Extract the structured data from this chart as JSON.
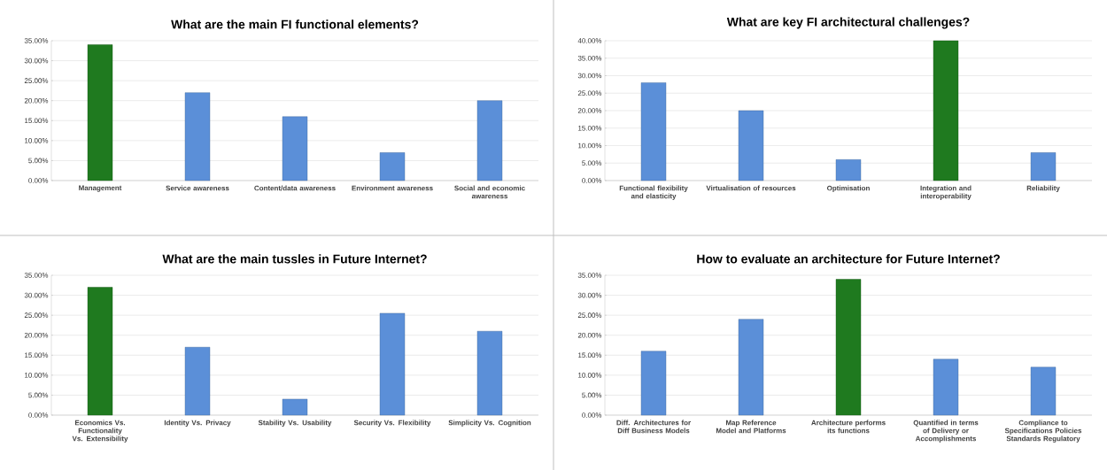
{
  "chart_data": [
    {
      "type": "bar",
      "title": "What are the main FI functional elements?",
      "categories": [
        "Management",
        "Service awareness",
        "Content/data awareness",
        "Environment awareness",
        "Social and economic awareness"
      ],
      "values": [
        34,
        22,
        16,
        7,
        20
      ],
      "colors": [
        "#1f7a1f",
        "#5b8fd8",
        "#5b8fd8",
        "#5b8fd8",
        "#5b8fd8"
      ],
      "ylim": [
        0,
        35
      ],
      "yticks": [
        {
          "value": 0,
          "label": "0.00%"
        },
        {
          "value": 5,
          "label": "5.00%"
        },
        {
          "value": 10,
          "label": "10.00%"
        },
        {
          "value": 15,
          "label": "15.00%"
        },
        {
          "value": 20,
          "label": "20.00%"
        },
        {
          "value": 25,
          "label": "25.00%"
        },
        {
          "value": 30,
          "label": "30.00%"
        },
        {
          "value": 35,
          "label": "35.00%"
        }
      ],
      "grid": "y"
    },
    {
      "type": "bar",
      "title": "What are key FI architectural challenges?",
      "categories": [
        "Functional flexibility and elasticity",
        "Virtualisation of resources",
        "Optimisation",
        "Integration and interoperability",
        "Reliability"
      ],
      "values": [
        28,
        20,
        6,
        40,
        8
      ],
      "colors": [
        "#5b8fd8",
        "#5b8fd8",
        "#5b8fd8",
        "#1f7a1f",
        "#5b8fd8"
      ],
      "ylim": [
        0,
        40
      ],
      "yticks": [
        {
          "value": 0,
          "label": "0.00%"
        },
        {
          "value": 5,
          "label": "5.00%"
        },
        {
          "value": 10,
          "label": "10.00%"
        },
        {
          "value": 15,
          "label": "15.00%"
        },
        {
          "value": 20,
          "label": "20.00%"
        },
        {
          "value": 25,
          "label": "25.00%"
        },
        {
          "value": 30,
          "label": "30.00%"
        },
        {
          "value": 35,
          "label": "35.00%"
        },
        {
          "value": 40,
          "label": "40.00%"
        }
      ],
      "grid": "y"
    },
    {
      "type": "bar",
      "title": "What are the main tussles in Future Internet?",
      "categories": [
        "Economics Vs. Functionality Vs. Extensibility",
        "Identity Vs. Privacy",
        "Stability Vs. Usability",
        "Security Vs. Flexibility",
        "Simplicity Vs. Cognition"
      ],
      "values": [
        32,
        17,
        4,
        25.5,
        21
      ],
      "colors": [
        "#1f7a1f",
        "#5b8fd8",
        "#5b8fd8",
        "#5b8fd8",
        "#5b8fd8"
      ],
      "ylim": [
        0,
        35
      ],
      "yticks": [
        {
          "value": 0,
          "label": "0.00%"
        },
        {
          "value": 5,
          "label": "5.00%"
        },
        {
          "value": 10,
          "label": "10.00%"
        },
        {
          "value": 15,
          "label": "15.00%"
        },
        {
          "value": 20,
          "label": "20.00%"
        },
        {
          "value": 25,
          "label": "25.00%"
        },
        {
          "value": 30,
          "label": "30.00%"
        },
        {
          "value": 35,
          "label": "35.00%"
        }
      ],
      "grid": "y"
    },
    {
      "type": "bar",
      "title": "How to evaluate an architecture for Future Internet?",
      "categories": [
        "Diff. Architectures for Diff Business Models",
        "Map Reference Model and Platforms",
        "Architecture performs its functions",
        "Quantified in terms of Delivery or Accomplishments",
        "Compliance to Specifications Policies Standards Regulatory"
      ],
      "values": [
        16,
        24,
        34,
        14,
        12
      ],
      "colors": [
        "#5b8fd8",
        "#5b8fd8",
        "#1f7a1f",
        "#5b8fd8",
        "#5b8fd8"
      ],
      "ylim": [
        0,
        35
      ],
      "yticks": [
        {
          "value": 0,
          "label": "0.00%"
        },
        {
          "value": 5,
          "label": "5.00%"
        },
        {
          "value": 10,
          "label": "10.00%"
        },
        {
          "value": 15,
          "label": "15.00%"
        },
        {
          "value": 20,
          "label": "20.00%"
        },
        {
          "value": 25,
          "label": "25.00%"
        },
        {
          "value": 30,
          "label": "30.00%"
        },
        {
          "value": 35,
          "label": "35.00%"
        }
      ],
      "grid": "y"
    }
  ]
}
